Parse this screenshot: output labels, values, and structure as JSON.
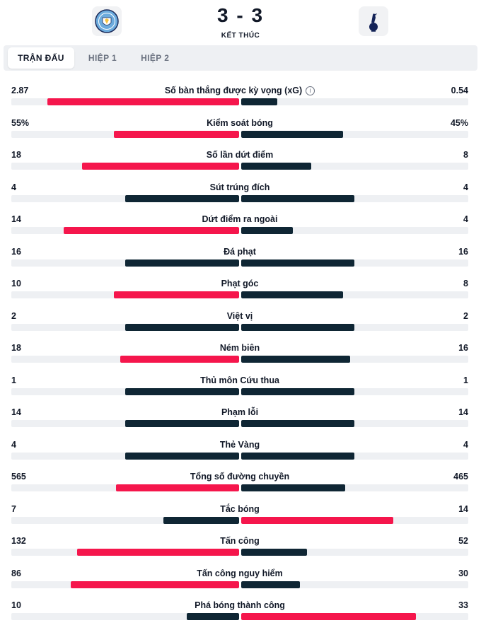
{
  "match": {
    "score": "3 - 3",
    "status": "KẾT THÚC",
    "home_logo": "manchester-city-crest",
    "away_logo": "tottenham-hotspur-crest"
  },
  "tabs": [
    {
      "label": "TRẬN ĐẤU",
      "active": true
    },
    {
      "label": "HIỆP 1",
      "active": false
    },
    {
      "label": "HIỆP 2",
      "active": false
    }
  ],
  "colors": {
    "leader": "#f5164c",
    "trailer": "#0f2634",
    "track": "#eef0f3"
  },
  "stats": [
    {
      "name": "Số bàn thắng được kỳ vọng (xG)",
      "home": "2.87",
      "away": "0.54",
      "home_share": 0.84,
      "away_share": 0.16,
      "info": true
    },
    {
      "name": "Kiểm soát bóng",
      "home": "55%",
      "away": "45%",
      "home_share": 0.55,
      "away_share": 0.45
    },
    {
      "name": "Số lần dứt điểm",
      "home": "18",
      "away": "8",
      "home_share": 0.69,
      "away_share": 0.31
    },
    {
      "name": "Sút trúng đích",
      "home": "4",
      "away": "4",
      "home_share": 0.5,
      "away_share": 0.5
    },
    {
      "name": "Dứt điểm ra ngoài",
      "home": "14",
      "away": "4",
      "home_share": 0.77,
      "away_share": 0.23
    },
    {
      "name": "Đá phạt",
      "home": "16",
      "away": "16",
      "home_share": 0.5,
      "away_share": 0.5
    },
    {
      "name": "Phạt góc",
      "home": "10",
      "away": "8",
      "home_share": 0.55,
      "away_share": 0.45
    },
    {
      "name": "Việt vị",
      "home": "2",
      "away": "2",
      "home_share": 0.5,
      "away_share": 0.5
    },
    {
      "name": "Ném biên",
      "home": "18",
      "away": "16",
      "home_share": 0.52,
      "away_share": 0.48
    },
    {
      "name": "Thủ môn Cứu thua",
      "home": "1",
      "away": "1",
      "home_share": 0.5,
      "away_share": 0.5
    },
    {
      "name": "Phạm lỗi",
      "home": "14",
      "away": "14",
      "home_share": 0.5,
      "away_share": 0.5
    },
    {
      "name": "Thẻ Vàng",
      "home": "4",
      "away": "4",
      "home_share": 0.5,
      "away_share": 0.5
    },
    {
      "name": "Tổng số đường chuyền",
      "home": "565",
      "away": "465",
      "home_share": 0.54,
      "away_share": 0.46
    },
    {
      "name": "Tắc bóng",
      "home": "7",
      "away": "14",
      "home_share": 0.33,
      "away_share": 0.67
    },
    {
      "name": "Tấn công",
      "home": "132",
      "away": "52",
      "home_share": 0.71,
      "away_share": 0.29
    },
    {
      "name": "Tấn công nguy hiểm",
      "home": "86",
      "away": "30",
      "home_share": 0.74,
      "away_share": 0.26
    },
    {
      "name": "Phá bóng thành công",
      "home": "10",
      "away": "33",
      "home_share": 0.23,
      "away_share": 0.77
    }
  ]
}
